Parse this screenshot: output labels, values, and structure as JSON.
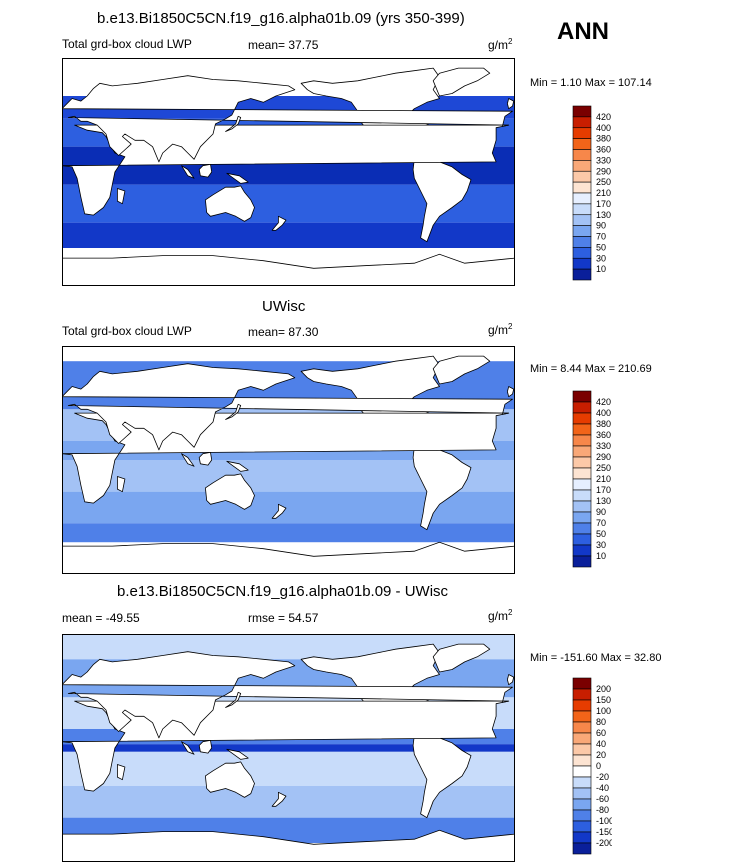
{
  "season": "ANN",
  "colors": {
    "ocean_dark": "#0a2db5",
    "ocean_mid": "#2d5fe0",
    "ocean_light": "#7aa6f0",
    "ocean_pale": "#c8dcf8",
    "land": "#ffffff",
    "coast": "#000000"
  },
  "panels": [
    {
      "title": "b.e13.Bi1850C5CN.f19_g16.alpha01b.09 (yrs 350-399)",
      "left_label": "Total grd-box cloud LWP",
      "stat_label": "mean=  37.75",
      "units_base": "g/m",
      "units_exp": "2",
      "minmax": "Min =   1.10 Max = 107.14"
    },
    {
      "title": "UWisc",
      "left_label": "Total grd-box cloud LWP",
      "stat_label": "mean=  87.30",
      "units_base": "g/m",
      "units_exp": "2",
      "minmax": "Min =   8.44 Max = 210.69"
    },
    {
      "title": "b.e13.Bi1850C5CN.f19_g16.alpha01b.09 - UWisc",
      "left_label": "mean = -49.55",
      "stat_label": "rmse =  54.57",
      "units_base": "g/m",
      "units_exp": "2",
      "minmax": "Min = -151.60 Max =  32.80"
    }
  ],
  "chart_data": [
    {
      "type": "heatmap",
      "title": "b.e13.Bi1850C5CN.f19_g16.alpha01b.09 (yrs 350-399)",
      "variable": "Total grd-box cloud LWP",
      "units": "g/m2",
      "mean": 37.75,
      "min": 1.1,
      "max": 107.14,
      "colorbar": {
        "levels": [
          "420",
          "400",
          "380",
          "360",
          "330",
          "290",
          "250",
          "210",
          "170",
          "130",
          "90",
          "70",
          "50",
          "30",
          "10"
        ],
        "colors": [
          "#7a0000",
          "#c81e00",
          "#e63c00",
          "#f26419",
          "#f7874a",
          "#f9a878",
          "#fcc9a8",
          "#fde4d2",
          "#e6efff",
          "#c8dcfa",
          "#a3c2f5",
          "#7aa6f0",
          "#4f80e8",
          "#2d5fe0",
          "#1238c8",
          "#0a1f9a"
        ]
      }
    },
    {
      "type": "heatmap",
      "title": "UWisc",
      "variable": "Total grd-box cloud LWP",
      "units": "g/m2",
      "mean": 87.3,
      "min": 8.44,
      "max": 210.69,
      "colorbar": {
        "levels": [
          "420",
          "400",
          "380",
          "360",
          "330",
          "290",
          "250",
          "210",
          "170",
          "130",
          "90",
          "70",
          "50",
          "30",
          "10"
        ],
        "colors": [
          "#7a0000",
          "#c81e00",
          "#e63c00",
          "#f26419",
          "#f7874a",
          "#f9a878",
          "#fcc9a8",
          "#fde4d2",
          "#e6efff",
          "#c8dcfa",
          "#a3c2f5",
          "#7aa6f0",
          "#4f80e8",
          "#2d5fe0",
          "#1238c8",
          "#0a1f9a"
        ]
      }
    },
    {
      "type": "heatmap",
      "title": "b.e13.Bi1850C5CN.f19_g16.alpha01b.09 - UWisc",
      "units": "g/m2",
      "mean": -49.55,
      "rmse": 54.57,
      "min": -151.6,
      "max": 32.8,
      "colorbar": {
        "levels": [
          "200",
          "150",
          "100",
          "80",
          "60",
          "40",
          "20",
          "0",
          "-20",
          "-40",
          "-60",
          "-80",
          "-100",
          "-150",
          "-200"
        ],
        "colors": [
          "#7a0000",
          "#c81e00",
          "#e63c00",
          "#f26419",
          "#f7874a",
          "#f9a878",
          "#fcc9a8",
          "#fde4d2",
          "#ffffff",
          "#c8dcfa",
          "#a3c2f5",
          "#7aa6f0",
          "#4f80e8",
          "#2d5fe0",
          "#1238c8",
          "#0a1f9a"
        ]
      }
    }
  ]
}
